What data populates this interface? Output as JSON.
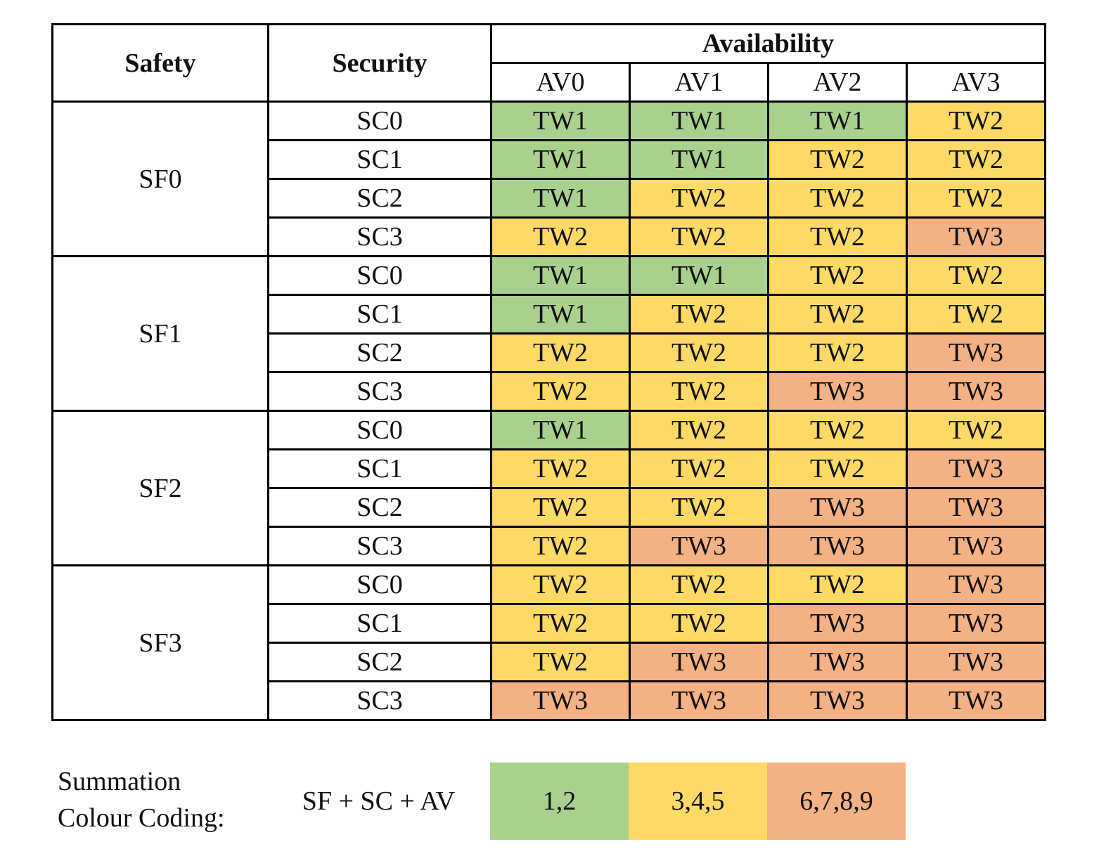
{
  "table": {
    "header": {
      "safety": "Safety",
      "security": "Security",
      "availability": "Availability",
      "av": [
        "AV0",
        "AV1",
        "AV2",
        "AV3"
      ]
    },
    "cell_colors": {
      "TW1": "#a9d18e",
      "TW2": "#ffd966",
      "TW3": "#f4b183"
    },
    "groups": [
      {
        "label": "SF0",
        "rows": [
          {
            "security": "SC0",
            "cells": [
              "TW1",
              "TW1",
              "TW1",
              "TW2"
            ]
          },
          {
            "security": "SC1",
            "cells": [
              "TW1",
              "TW1",
              "TW2",
              "TW2"
            ]
          },
          {
            "security": "SC2",
            "cells": [
              "TW1",
              "TW2",
              "TW2",
              "TW2"
            ]
          },
          {
            "security": "SC3",
            "cells": [
              "TW2",
              "TW2",
              "TW2",
              "TW3"
            ]
          }
        ]
      },
      {
        "label": "SF1",
        "rows": [
          {
            "security": "SC0",
            "cells": [
              "TW1",
              "TW1",
              "TW2",
              "TW2"
            ]
          },
          {
            "security": "SC1",
            "cells": [
              "TW1",
              "TW2",
              "TW2",
              "TW2"
            ]
          },
          {
            "security": "SC2",
            "cells": [
              "TW2",
              "TW2",
              "TW2",
              "TW3"
            ]
          },
          {
            "security": "SC3",
            "cells": [
              "TW2",
              "TW2",
              "TW3",
              "TW3"
            ]
          }
        ]
      },
      {
        "label": "SF2",
        "rows": [
          {
            "security": "SC0",
            "cells": [
              "TW1",
              "TW2",
              "TW2",
              "TW2"
            ]
          },
          {
            "security": "SC1",
            "cells": [
              "TW2",
              "TW2",
              "TW2",
              "TW3"
            ]
          },
          {
            "security": "SC2",
            "cells": [
              "TW2",
              "TW2",
              "TW3",
              "TW3"
            ]
          },
          {
            "security": "SC3",
            "cells": [
              "TW2",
              "TW3",
              "TW3",
              "TW3"
            ]
          }
        ]
      },
      {
        "label": "SF3",
        "rows": [
          {
            "security": "SC0",
            "cells": [
              "TW2",
              "TW2",
              "TW2",
              "TW3"
            ]
          },
          {
            "security": "SC1",
            "cells": [
              "TW2",
              "TW2",
              "TW3",
              "TW3"
            ]
          },
          {
            "security": "SC2",
            "cells": [
              "TW2",
              "TW3",
              "TW3",
              "TW3"
            ]
          },
          {
            "security": "SC3",
            "cells": [
              "TW3",
              "TW3",
              "TW3",
              "TW3"
            ]
          }
        ]
      }
    ]
  },
  "legend": {
    "title": [
      "Summation",
      "Colour Coding:"
    ],
    "formula": "SF + SC + AV",
    "items": [
      {
        "label": "1,2",
        "color": "#a9d18e"
      },
      {
        "label": "3,4,5",
        "color": "#ffd966"
      },
      {
        "label": "6,7,8,9",
        "color": "#f4b183"
      }
    ]
  }
}
